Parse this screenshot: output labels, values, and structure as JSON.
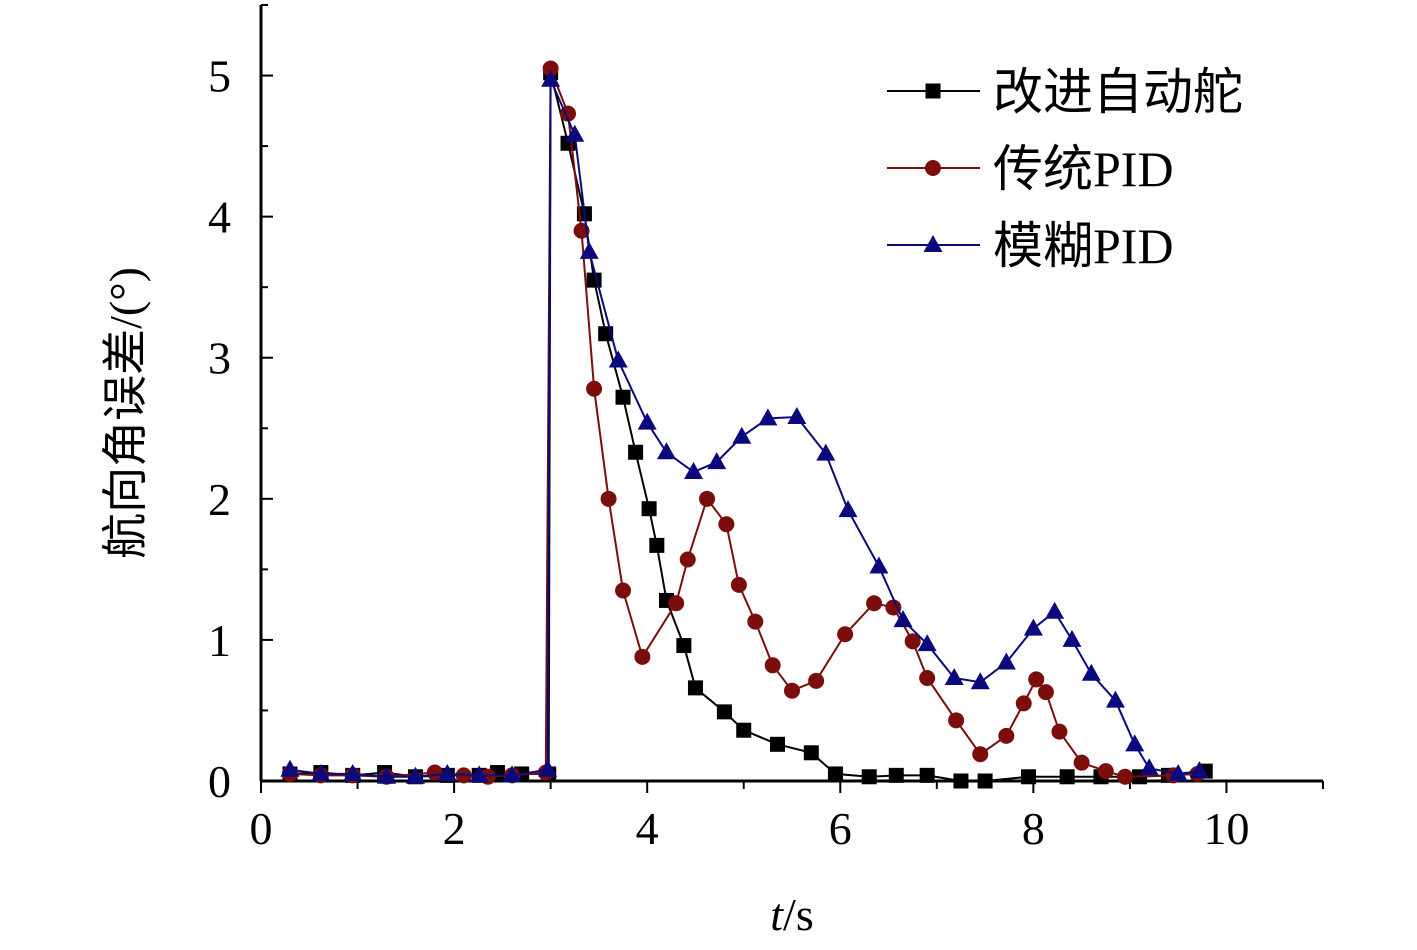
{
  "chart_data": {
    "type": "line",
    "xlabel_italic": "t",
    "xlabel_unit": "/s",
    "ylabel": "航向角误差/(°)",
    "xlim": [
      0,
      11
    ],
    "ylim": [
      0,
      5.5
    ],
    "x_ticks": [
      0,
      2,
      4,
      6,
      8,
      10
    ],
    "y_ticks": [
      0,
      1,
      2,
      3,
      4,
      5
    ],
    "grid": false,
    "legend_position": "top-right",
    "series": [
      {
        "name": "改进自动舵",
        "color": "#000000",
        "marker": "square",
        "points": [
          [
            0.3,
            0.05
          ],
          [
            0.62,
            0.06
          ],
          [
            0.95,
            0.04
          ],
          [
            1.28,
            0.06
          ],
          [
            1.6,
            0.03
          ],
          [
            1.93,
            0.04
          ],
          [
            2.26,
            0.04
          ],
          [
            2.45,
            0.06
          ],
          [
            2.7,
            0.05
          ],
          [
            2.98,
            0.05
          ],
          [
            3.0,
            5.02
          ],
          [
            3.18,
            4.52
          ],
          [
            3.35,
            4.02
          ],
          [
            3.45,
            3.55
          ],
          [
            3.57,
            3.17
          ],
          [
            3.75,
            2.72
          ],
          [
            3.88,
            2.33
          ],
          [
            4.02,
            1.93
          ],
          [
            4.1,
            1.67
          ],
          [
            4.2,
            1.28
          ],
          [
            4.38,
            0.96
          ],
          [
            4.5,
            0.66
          ],
          [
            4.8,
            0.49
          ],
          [
            5.0,
            0.36
          ],
          [
            5.35,
            0.26
          ],
          [
            5.7,
            0.2
          ],
          [
            5.95,
            0.05
          ],
          [
            6.3,
            0.03
          ],
          [
            6.58,
            0.04
          ],
          [
            6.9,
            0.04
          ],
          [
            7.25,
            0.0
          ],
          [
            7.5,
            0.0
          ],
          [
            7.95,
            0.03
          ],
          [
            8.35,
            0.03
          ],
          [
            8.7,
            0.03
          ],
          [
            9.1,
            0.03
          ],
          [
            9.4,
            0.04
          ],
          [
            9.78,
            0.07
          ]
        ]
      },
      {
        "name": "传统PID",
        "color": "#7B0D0D",
        "marker": "circle",
        "points": [
          [
            0.3,
            0.05
          ],
          [
            0.62,
            0.04
          ],
          [
            0.95,
            0.04
          ],
          [
            1.3,
            0.03
          ],
          [
            1.8,
            0.06
          ],
          [
            2.1,
            0.04
          ],
          [
            2.35,
            0.03
          ],
          [
            2.6,
            0.04
          ],
          [
            2.95,
            0.06
          ],
          [
            3.0,
            5.05
          ],
          [
            3.18,
            4.73
          ],
          [
            3.32,
            3.9
          ],
          [
            3.45,
            2.78
          ],
          [
            3.6,
            2.0
          ],
          [
            3.75,
            1.35
          ],
          [
            3.95,
            0.88
          ],
          [
            4.3,
            1.26
          ],
          [
            4.42,
            1.57
          ],
          [
            4.62,
            2.0
          ],
          [
            4.82,
            1.82
          ],
          [
            4.95,
            1.39
          ],
          [
            5.12,
            1.13
          ],
          [
            5.3,
            0.82
          ],
          [
            5.5,
            0.64
          ],
          [
            5.75,
            0.71
          ],
          [
            6.05,
            1.04
          ],
          [
            6.35,
            1.26
          ],
          [
            6.55,
            1.23
          ],
          [
            6.75,
            0.99
          ],
          [
            6.9,
            0.73
          ],
          [
            7.2,
            0.43
          ],
          [
            7.45,
            0.19
          ],
          [
            7.72,
            0.32
          ],
          [
            7.9,
            0.55
          ],
          [
            8.03,
            0.72
          ],
          [
            8.13,
            0.63
          ],
          [
            8.27,
            0.35
          ],
          [
            8.5,
            0.13
          ],
          [
            8.75,
            0.07
          ],
          [
            8.95,
            0.03
          ],
          [
            9.45,
            0.04
          ],
          [
            9.7,
            0.05
          ]
        ]
      },
      {
        "name": "模糊PID",
        "color": "#0A0A7E",
        "marker": "triangle",
        "points": [
          [
            0.3,
            0.08
          ],
          [
            0.62,
            0.05
          ],
          [
            0.95,
            0.05
          ],
          [
            1.3,
            0.03
          ],
          [
            1.6,
            0.03
          ],
          [
            1.93,
            0.05
          ],
          [
            2.26,
            0.04
          ],
          [
            2.6,
            0.04
          ],
          [
            2.97,
            0.08
          ],
          [
            3.0,
            4.97
          ],
          [
            3.25,
            4.58
          ],
          [
            3.4,
            3.75
          ],
          [
            3.7,
            2.98
          ],
          [
            4.0,
            2.54
          ],
          [
            4.2,
            2.33
          ],
          [
            4.48,
            2.19
          ],
          [
            4.72,
            2.26
          ],
          [
            4.98,
            2.44
          ],
          [
            5.25,
            2.57
          ],
          [
            5.55,
            2.58
          ],
          [
            5.85,
            2.32
          ],
          [
            6.08,
            1.92
          ],
          [
            6.4,
            1.52
          ],
          [
            6.65,
            1.14
          ],
          [
            6.9,
            0.97
          ],
          [
            7.18,
            0.73
          ],
          [
            7.45,
            0.7
          ],
          [
            7.72,
            0.84
          ],
          [
            8.0,
            1.08
          ],
          [
            8.22,
            1.2
          ],
          [
            8.4,
            1.0
          ],
          [
            8.6,
            0.76
          ],
          [
            8.85,
            0.57
          ],
          [
            9.05,
            0.26
          ],
          [
            9.2,
            0.09
          ],
          [
            9.5,
            0.05
          ],
          [
            9.72,
            0.07
          ]
        ]
      }
    ]
  }
}
